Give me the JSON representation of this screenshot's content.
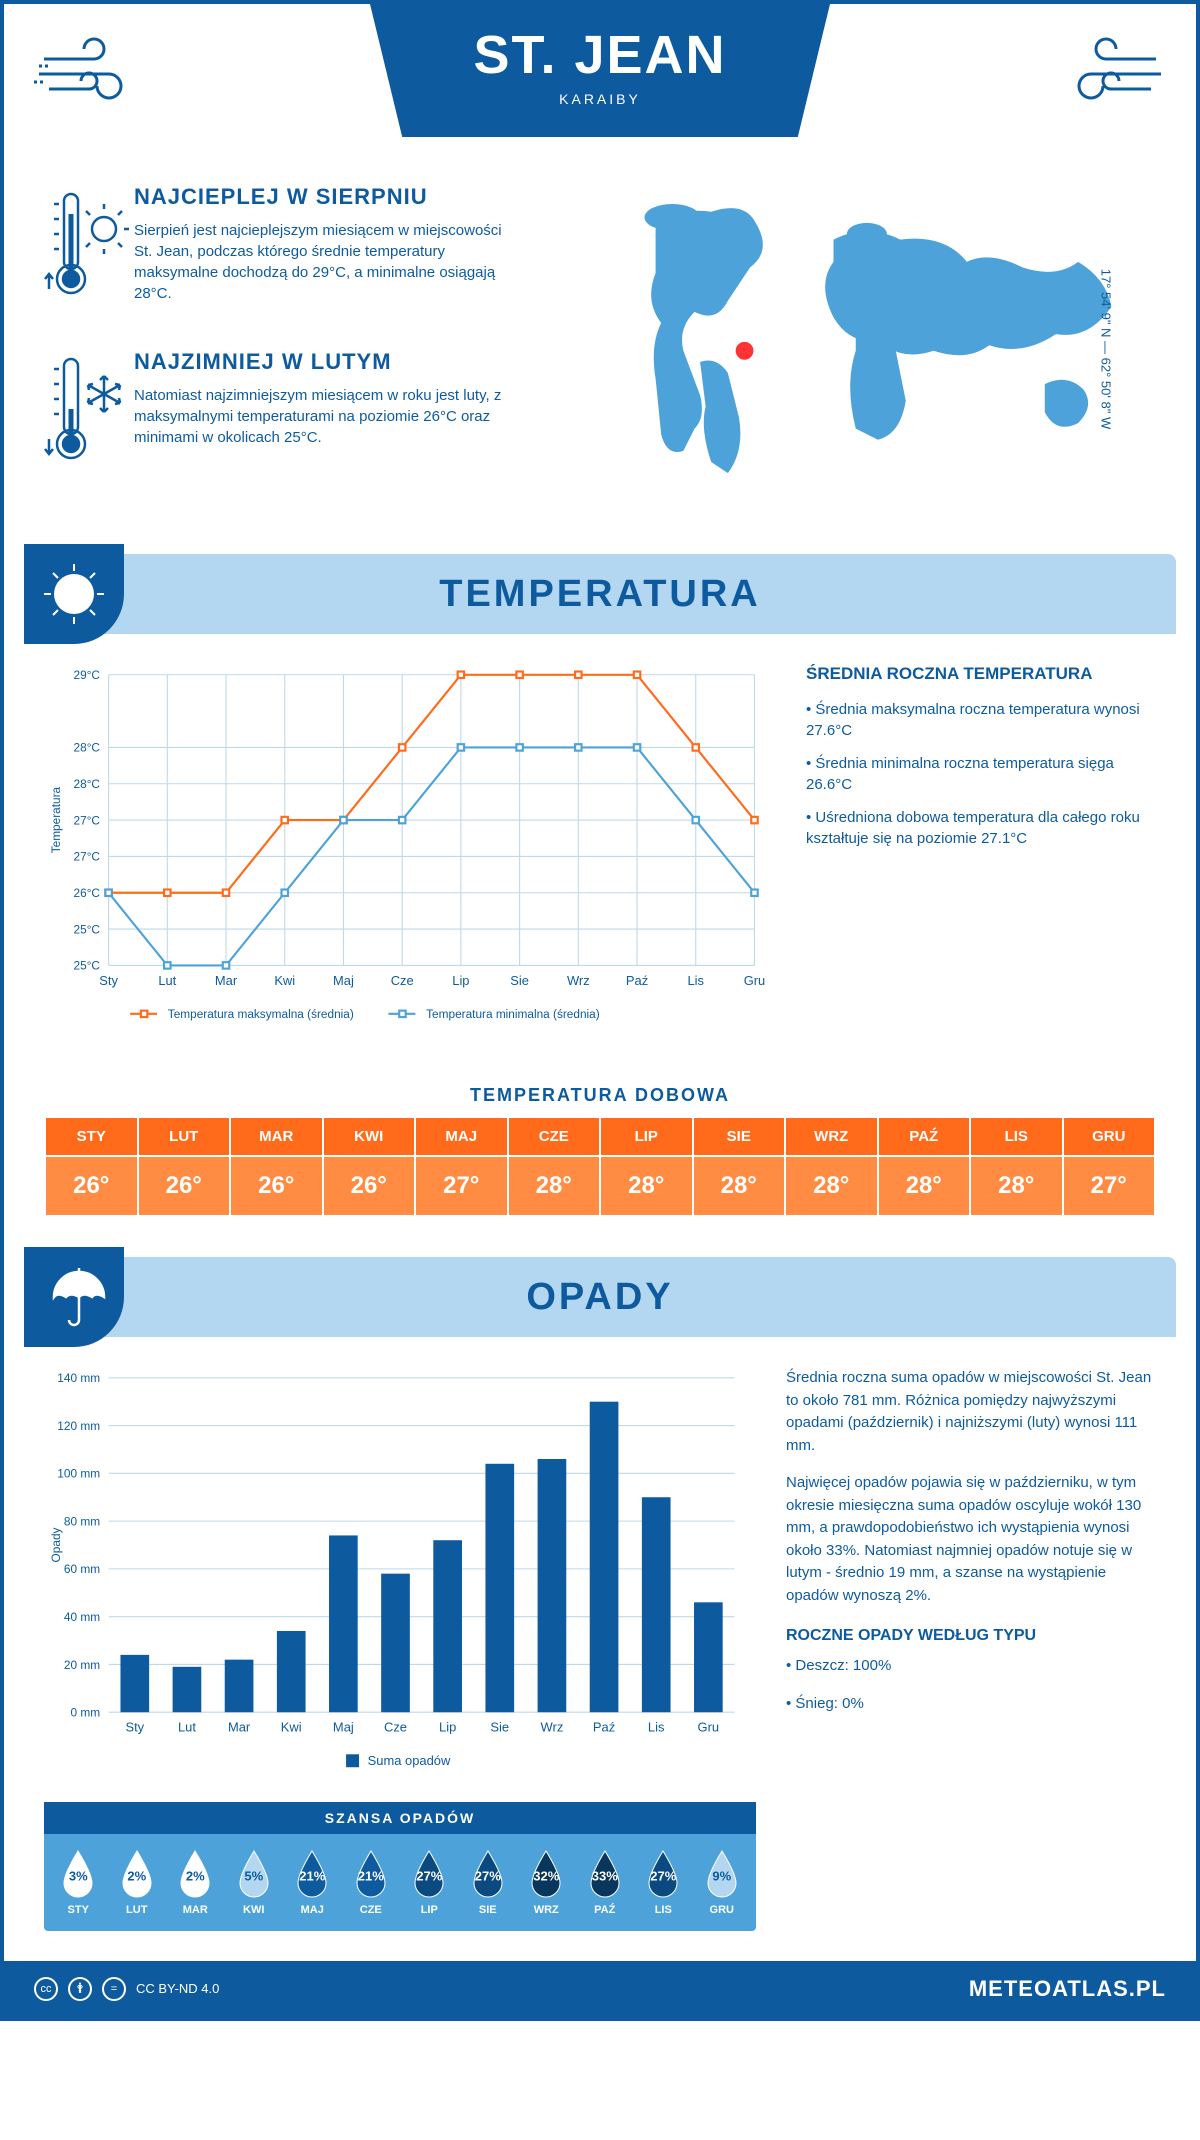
{
  "header": {
    "title": "ST. JEAN",
    "subtitle": "KARAIBY",
    "coords": "17° 54' 9\" N — 62° 50' 8\" W"
  },
  "hottest": {
    "title": "NAJCIEPLEJ W SIERPNIU",
    "text": "Sierpień jest najcieplejszym miesiącem w miejscowości St. Jean, podczas którego średnie temperatury maksymalne dochodzą do 29°C, a minimalne osiągają 28°C."
  },
  "coldest": {
    "title": "NAJZIMNIEJ W LUTYM",
    "text": "Natomiast najzimniejszym miesiącem w roku jest luty, z maksymalnymi temperaturami na poziomie 26°C oraz minimami w okolicach 25°C."
  },
  "sections": {
    "temperature": "TEMPERATURA",
    "precipitation": "OPADY"
  },
  "temp_chart": {
    "type": "line",
    "ylabel": "Temperatura",
    "yticks": [
      "25°C",
      "25°C",
      "26°C",
      "27°C",
      "27°C",
      "28°C",
      "28°C",
      "29°C"
    ],
    "yvalues": [
      25,
      25.5,
      26,
      26.5,
      27,
      27.5,
      28,
      29
    ],
    "xticks": [
      "Sty",
      "Lut",
      "Mar",
      "Kwi",
      "Maj",
      "Cze",
      "Lip",
      "Sie",
      "Wrz",
      "Paź",
      "Lis",
      "Gru"
    ],
    "series": [
      {
        "name": "Temperatura maksymalna (średnia)",
        "color": "#ff6b1a",
        "values": [
          26,
          26,
          26,
          27,
          27,
          28,
          29,
          29,
          29,
          29,
          28,
          27
        ]
      },
      {
        "name": "Temperatura minimalna (średnia)",
        "color": "#4da3d9",
        "values": [
          26,
          25,
          25,
          26,
          27,
          27,
          28,
          28,
          28,
          28,
          27,
          26
        ]
      }
    ],
    "ylim": [
      25,
      29
    ],
    "grid_color": "#c0d8e8",
    "marker": "square",
    "marker_size": 6,
    "line_width": 2
  },
  "temp_info": {
    "title": "ŚREDNIA ROCZNA TEMPERATURA",
    "bullets": [
      "• Średnia maksymalna roczna temperatura wynosi 27.6°C",
      "• Średnia minimalna roczna temperatura sięga 26.6°C",
      "• Uśredniona dobowa temperatura dla całego roku kształtuje się na poziomie 27.1°C"
    ]
  },
  "daily_temp": {
    "title": "TEMPERATURA DOBOWA",
    "months": [
      "STY",
      "LUT",
      "MAR",
      "KWI",
      "MAJ",
      "CZE",
      "LIP",
      "SIE",
      "WRZ",
      "PAŹ",
      "LIS",
      "GRU"
    ],
    "values": [
      "26°",
      "26°",
      "26°",
      "26°",
      "27°",
      "28°",
      "28°",
      "28°",
      "28°",
      "28°",
      "28°",
      "27°"
    ],
    "head_color": "#ff6b1a",
    "body_color": "#ff8c42"
  },
  "precip_chart": {
    "type": "bar",
    "ylabel": "Opady",
    "ylim": [
      0,
      140
    ],
    "ytick_step": 20,
    "yticks": [
      "0 mm",
      "20 mm",
      "40 mm",
      "60 mm",
      "80 mm",
      "100 mm",
      "120 mm",
      "140 mm"
    ],
    "xticks": [
      "Sty",
      "Lut",
      "Mar",
      "Kwi",
      "Maj",
      "Cze",
      "Lip",
      "Sie",
      "Wrz",
      "Paź",
      "Lis",
      "Gru"
    ],
    "values": [
      24,
      19,
      22,
      34,
      74,
      58,
      72,
      104,
      106,
      130,
      90,
      46
    ],
    "bar_color": "#0d5b9e",
    "bar_width": 0.55,
    "grid_color": "#c0d8e8",
    "legend": "Suma opadów"
  },
  "precip_info": {
    "p1": "Średnia roczna suma opadów w miejscowości St. Jean to około 781 mm. Różnica pomiędzy najwyższymi opadami (październik) i najniższymi (luty) wynosi 111 mm.",
    "p2": "Najwięcej opadów pojawia się w październiku, w tym okresie miesięczna suma opadów oscyluje wokół 130 mm, a prawdopodobieństwo ich wystąpienia wynosi około 33%. Natomiast najmniej opadów notuje się w lutym - średnio 19 mm, a szanse na wystąpienie opadów wynoszą 2%.",
    "type_title": "ROCZNE OPADY WEDŁUG TYPU",
    "type_rain": "• Deszcz: 100%",
    "type_snow": "• Śnieg: 0%"
  },
  "chance": {
    "title": "SZANSA OPADÓW",
    "months": [
      "STY",
      "LUT",
      "MAR",
      "KWI",
      "MAJ",
      "CZE",
      "LIP",
      "SIE",
      "WRZ",
      "PAŹ",
      "LIS",
      "GRU"
    ],
    "values": [
      "3%",
      "2%",
      "2%",
      "5%",
      "21%",
      "21%",
      "27%",
      "27%",
      "32%",
      "33%",
      "27%",
      "9%"
    ],
    "fills": [
      "#ffffff",
      "#ffffff",
      "#ffffff",
      "#b3d7f0",
      "#0d5b9e",
      "#0d5b9e",
      "#0a4a80",
      "#0a4a80",
      "#08365d",
      "#08365d",
      "#0a4a80",
      "#b3d7f0"
    ],
    "text_colors": [
      "#0d5b9e",
      "#0d5b9e",
      "#0d5b9e",
      "#0d5b9e",
      "#fff",
      "#fff",
      "#fff",
      "#fff",
      "#fff",
      "#fff",
      "#fff",
      "#0d5b9e"
    ]
  },
  "footer": {
    "license": "CC BY-ND 4.0",
    "site": "METEOATLAS.PL"
  },
  "colors": {
    "primary": "#0d5b9e",
    "light_blue": "#b3d7f0",
    "medium_blue": "#4da3d9",
    "orange": "#ff6b1a"
  }
}
